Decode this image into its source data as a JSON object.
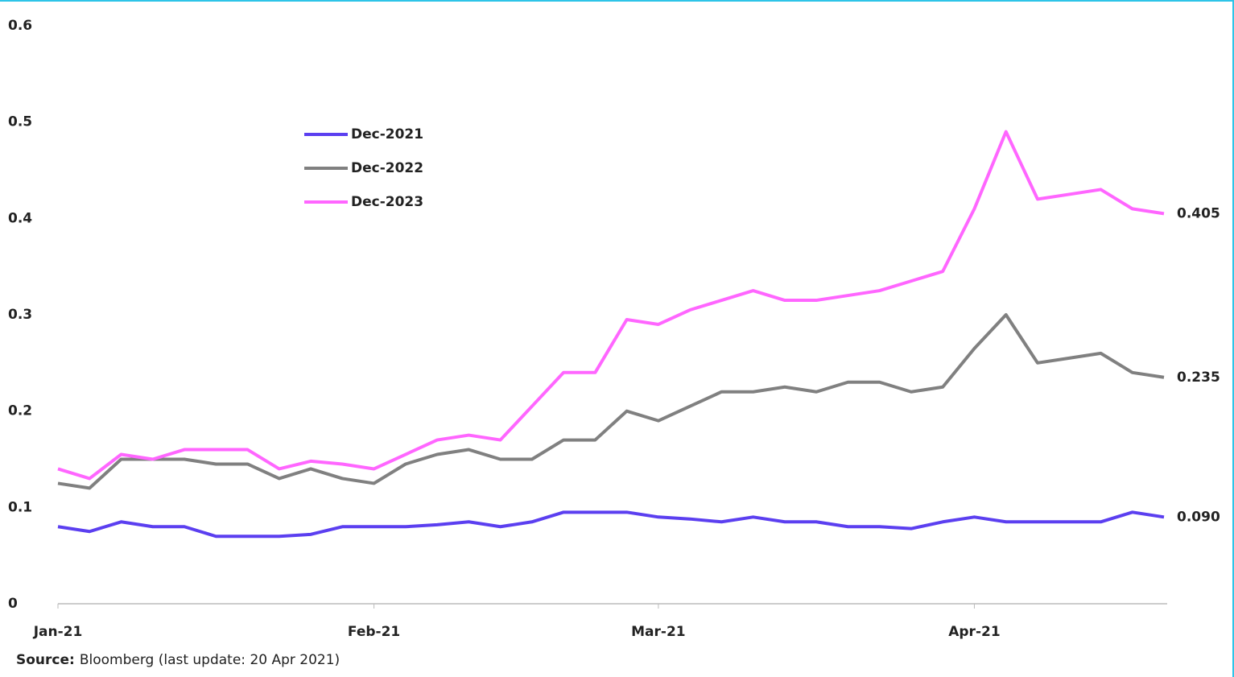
{
  "chart_data": {
    "type": "line",
    "categories": [
      "Jan-21",
      null,
      null,
      null,
      null,
      null,
      null,
      null,
      null,
      null,
      "Feb-21",
      null,
      null,
      null,
      null,
      null,
      null,
      null,
      null,
      "Mar-21",
      null,
      null,
      null,
      null,
      null,
      null,
      null,
      null,
      null,
      "Apr-21",
      null,
      null,
      null,
      null,
      null,
      null
    ],
    "series": [
      {
        "name": "Dec-2021",
        "color": "#5b3ff0",
        "values": [
          0.08,
          0.075,
          0.085,
          0.08,
          0.08,
          0.07,
          0.07,
          0.07,
          0.072,
          0.08,
          0.08,
          0.08,
          0.082,
          0.085,
          0.08,
          0.085,
          0.095,
          0.095,
          0.095,
          0.09,
          0.088,
          0.085,
          0.09,
          0.085,
          0.085,
          0.08,
          0.08,
          0.078,
          0.085,
          0.09,
          0.085,
          0.085,
          0.085,
          0.085,
          0.095,
          0.09
        ],
        "value_labels": [
          null,
          null,
          null,
          null,
          null,
          null,
          null,
          null,
          null,
          null,
          null,
          null,
          null,
          null,
          null,
          null,
          null,
          null,
          null,
          null,
          null,
          null,
          null,
          null,
          null,
          null,
          null,
          null,
          null,
          null,
          null,
          null,
          null,
          null,
          null,
          "0.090"
        ]
      },
      {
        "name": "Dec-2022",
        "color": "#808080",
        "values": [
          0.125,
          0.12,
          0.15,
          0.15,
          0.15,
          0.145,
          0.145,
          0.13,
          0.14,
          0.13,
          0.125,
          0.145,
          0.155,
          0.16,
          0.15,
          0.15,
          0.17,
          0.17,
          0.2,
          0.19,
          0.205,
          0.22,
          0.22,
          0.225,
          0.22,
          0.23,
          0.23,
          0.22,
          0.225,
          0.265,
          0.3,
          0.25,
          0.255,
          0.26,
          0.24,
          0.235
        ],
        "value_labels": [
          null,
          null,
          null,
          null,
          null,
          null,
          null,
          null,
          null,
          null,
          null,
          null,
          null,
          null,
          null,
          null,
          null,
          null,
          null,
          null,
          null,
          null,
          null,
          null,
          null,
          null,
          null,
          null,
          null,
          null,
          null,
          null,
          null,
          null,
          null,
          "0.235"
        ]
      },
      {
        "name": "Dec-2023",
        "color": "#ff66ff",
        "values": [
          0.14,
          0.13,
          0.155,
          0.15,
          0.16,
          0.16,
          0.16,
          0.14,
          0.148,
          0.145,
          0.14,
          0.155,
          0.17,
          0.175,
          0.17,
          0.205,
          0.24,
          0.24,
          0.295,
          0.29,
          0.305,
          0.315,
          0.325,
          0.315,
          0.315,
          0.32,
          0.325,
          0.335,
          0.345,
          0.41,
          0.49,
          0.42,
          0.425,
          0.43,
          0.41,
          0.405
        ],
        "value_labels": [
          null,
          null,
          null,
          null,
          null,
          null,
          null,
          null,
          null,
          null,
          null,
          null,
          null,
          null,
          null,
          null,
          null,
          null,
          null,
          null,
          null,
          null,
          null,
          null,
          null,
          null,
          null,
          null,
          null,
          null,
          null,
          null,
          null,
          null,
          null,
          "0.405"
        ]
      }
    ],
    "ylim": [
      0,
      0.6
    ],
    "yticks": [
      0,
      0.1,
      0.2,
      0.3,
      0.4,
      0.5,
      0.6
    ],
    "grid": false,
    "legend": "top-left",
    "source_label": "Source:",
    "source": "Bloomberg (last update: 20 Apr 2021)"
  }
}
